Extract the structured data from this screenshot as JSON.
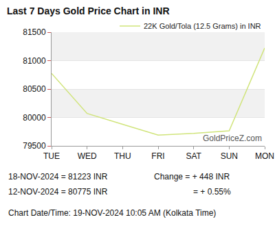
{
  "chart_data": {
    "type": "line",
    "title": "Last 7 Days Gold Price Chart in INR",
    "categories": [
      "TUE",
      "WED",
      "THU",
      "FRI",
      "SAT",
      "SUN",
      "MON"
    ],
    "series": [
      {
        "name": "22K Gold/Tola (12.5 Grams) in INR",
        "color": "#d0e47a",
        "values": [
          80775,
          80070,
          79880,
          79690,
          79720,
          79765,
          81223
        ]
      }
    ],
    "ylim": [
      79500,
      81500
    ],
    "yticks": [
      79500,
      80000,
      80500,
      81000,
      81500
    ],
    "grid": true,
    "legend": "upper right",
    "annotations": [
      "GoldPriceZ.com",
      "18-NOV-2024 = 81223 INR",
      "Change = + 448 INR",
      "12-NOV-2024 = 80775 INR",
      "= + 0.55%",
      "Chart Date/Time: 19-NOV-2024 10:05 AM (Kolkata Time)"
    ]
  }
}
